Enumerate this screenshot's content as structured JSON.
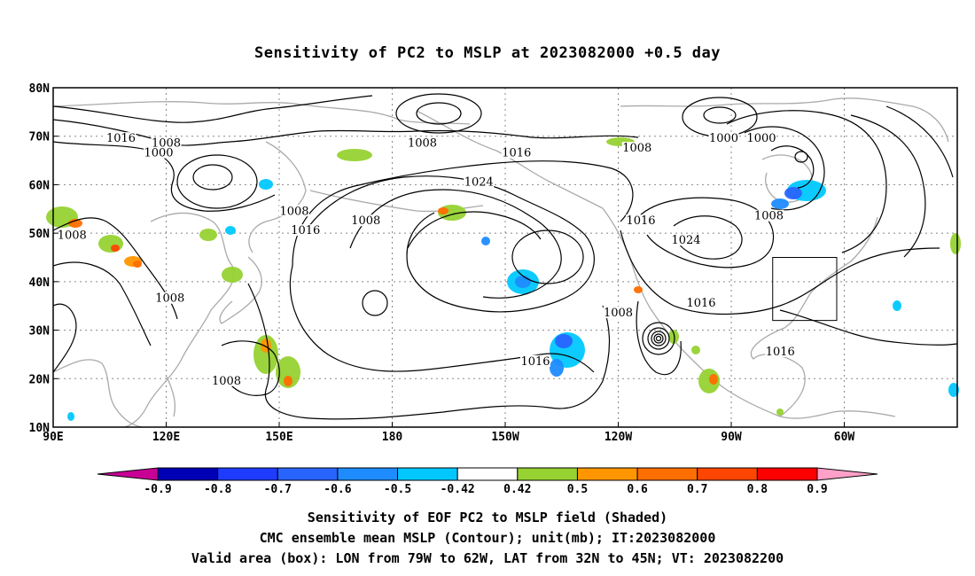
{
  "title": "Sensitivity of PC2 to MSLP at 2023082000 +0.5 day",
  "map": {
    "lat_ticks": [
      "80N",
      "70N",
      "60N",
      "50N",
      "40N",
      "30N",
      "20N",
      "10N"
    ],
    "lon_ticks": [
      "90E",
      "120E",
      "150E",
      "180",
      "150W",
      "120W",
      "90W",
      "60W"
    ],
    "contour_labels": [
      {
        "text": "1016",
        "lon": 108,
        "lat": 69
      },
      {
        "text": "1008",
        "lon": 120,
        "lat": 68
      },
      {
        "text": "1000",
        "lon": 118,
        "lat": 66
      },
      {
        "text": "1008",
        "lon": 188,
        "lat": 68
      },
      {
        "text": "1008",
        "lon": 245,
        "lat": 67
      },
      {
        "text": "1016",
        "lon": 213,
        "lat": 66
      },
      {
        "text": "1000",
        "lon": 268,
        "lat": 69
      },
      {
        "text": "1000",
        "lon": 278,
        "lat": 69
      },
      {
        "text": "1024",
        "lon": 203,
        "lat": 60
      },
      {
        "text": "1008",
        "lon": 154,
        "lat": 54
      },
      {
        "text": "1008",
        "lon": 173,
        "lat": 52
      },
      {
        "text": "1016",
        "lon": 157,
        "lat": 50
      },
      {
        "text": "1016",
        "lon": 246,
        "lat": 52
      },
      {
        "text": "1024",
        "lon": 258,
        "lat": 48
      },
      {
        "text": "1008",
        "lon": 280,
        "lat": 53
      },
      {
        "text": "1008",
        "lon": 95,
        "lat": 49
      },
      {
        "text": "1008",
        "lon": 121,
        "lat": 36
      },
      {
        "text": "1016",
        "lon": 262,
        "lat": 35
      },
      {
        "text": "1008",
        "lon": 240,
        "lat": 33
      },
      {
        "text": "1016",
        "lon": 218,
        "lat": 23
      },
      {
        "text": "1008",
        "lon": 136,
        "lat": 19
      },
      {
        "text": "1016",
        "lon": 283,
        "lat": 25
      }
    ],
    "valid_box": {
      "lon_min": -79,
      "lon_max": -62,
      "lat_min": 32,
      "lat_max": 45
    }
  },
  "colorbar": {
    "labels": [
      "-0.9",
      "-0.8",
      "-0.7",
      "-0.6",
      "-0.5",
      "-0.42",
      "0.42",
      "0.5",
      "0.6",
      "0.7",
      "0.8",
      "0.9"
    ],
    "colors": [
      "#0000b4",
      "#1e3cff",
      "#2864ff",
      "#1e8cff",
      "#00c8ff",
      "#ffffff",
      "#96d232",
      "#ff9600",
      "#ff6e00",
      "#ff4600",
      "#ff0000"
    ],
    "low_color": "#c80096",
    "high_color": "#ffa0c8"
  },
  "captions": {
    "line1": "Sensitivity of EOF PC2 to MSLP field (Shaded)",
    "line2": "CMC ensemble mean MSLP (Contour); unit(mb); IT:2023082000",
    "line3": "Valid area (box): LON from 79W to 62W, LAT from 32N to 45N; VT: 2023082200"
  }
}
